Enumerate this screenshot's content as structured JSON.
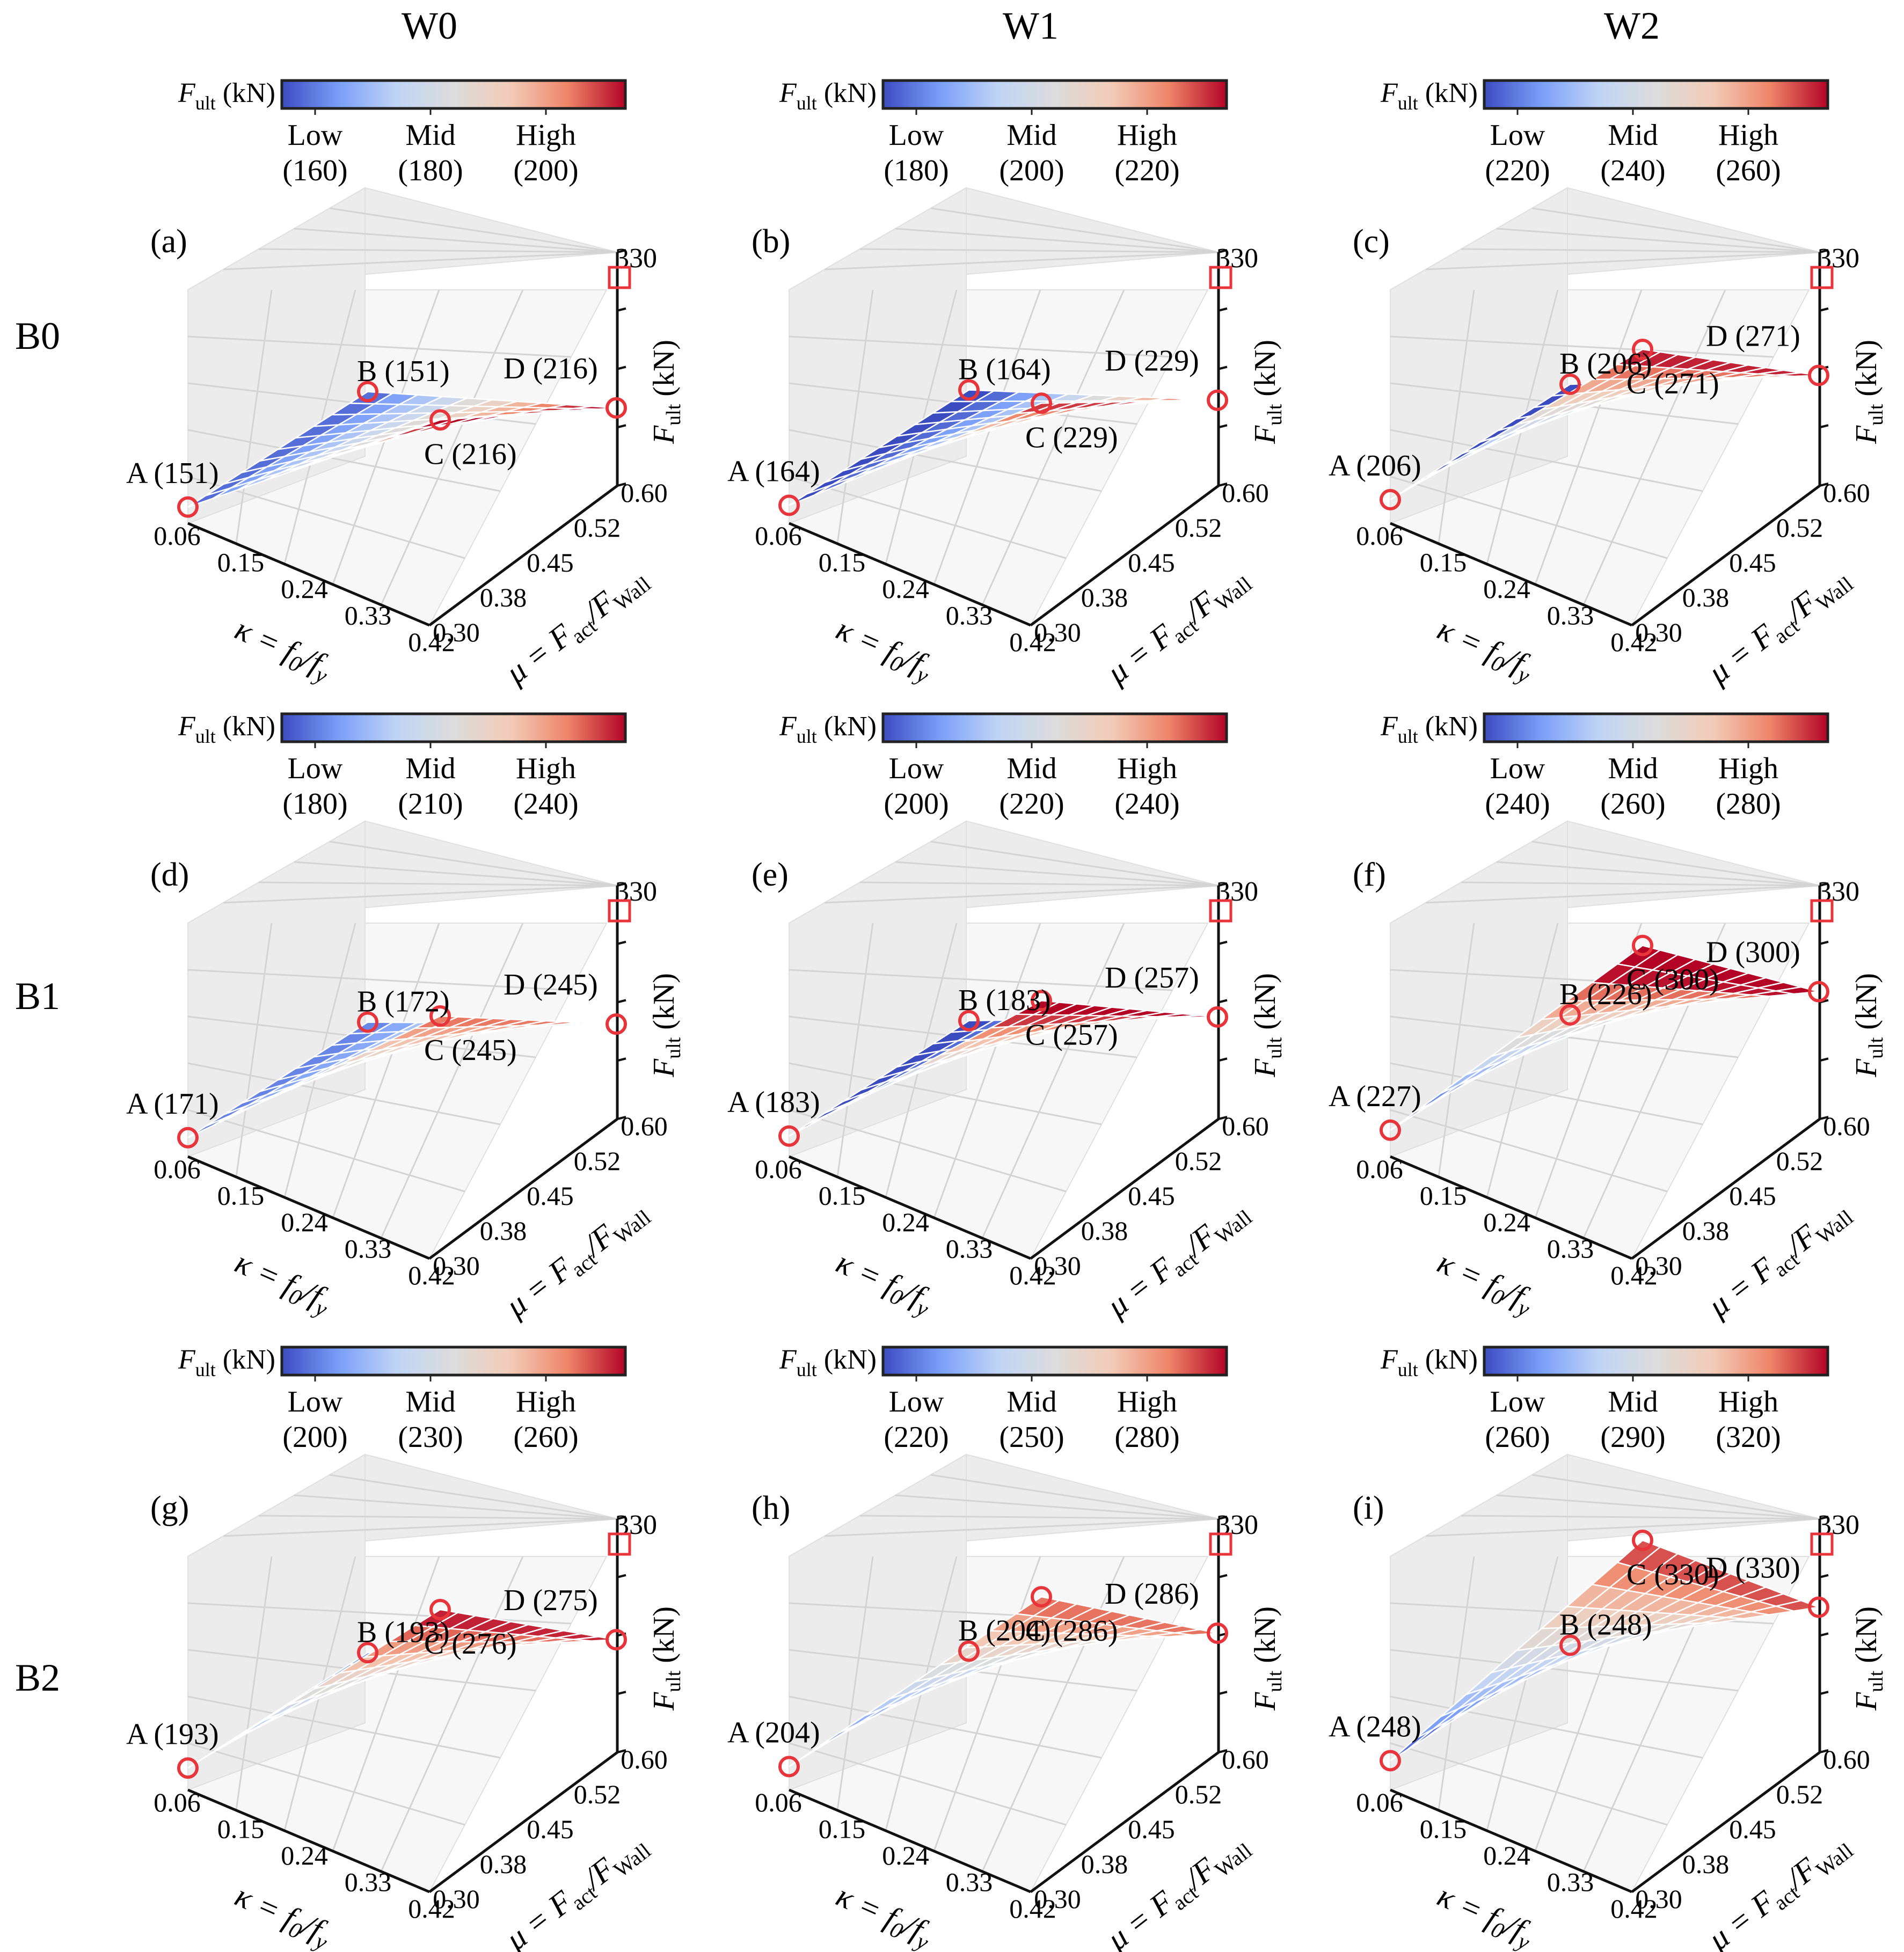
{
  "figure": {
    "columns": [
      "W0",
      "W1",
      "W2"
    ],
    "rows": [
      "B0",
      "B1",
      "B2"
    ],
    "axes": {
      "x_ticks": [
        "0.06",
        "0.15",
        "0.24",
        "0.33",
        "0.42"
      ],
      "y_ticks": [
        "0.30",
        "0.38",
        "0.45",
        "0.52",
        "0.60"
      ],
      "z_top": "330",
      "x_label_main": "κ = f",
      "x_label_sub1": "0",
      "x_label_mid": "/f",
      "x_label_sub2": "y",
      "y_label_main": "μ = F",
      "y_label_sub1": "act",
      "y_label_mid": "/F",
      "y_label_sub2": "Wall",
      "z_label_main": "F",
      "z_label_sub": "ult",
      "z_label_unit": " (kN)"
    },
    "colorbar": {
      "label_main": "F",
      "label_sub": "ult",
      "label_unit": " (kN)",
      "levels": [
        "Low",
        "Mid",
        "High"
      ],
      "colormap": [
        "#3b4cc0",
        "#7b9ff9",
        "#c0d4f5",
        "#dddcdc",
        "#f2cbb7",
        "#ee8468",
        "#b40426"
      ]
    },
    "colors": {
      "marker": "#e8353b",
      "grid": "#d4d4d4",
      "pane_light": "#f7f7f7",
      "pane_dark": "#ececec"
    }
  },
  "chart_data": [
    {
      "panel": "(a)",
      "type": "surface",
      "row": "B0",
      "column": "W0",
      "x_ticks": [
        0.06,
        0.15,
        0.24,
        0.33,
        0.42
      ],
      "y_ticks": [
        0.3,
        0.38,
        0.45,
        0.52,
        0.6
      ],
      "zlim": [
        0,
        330
      ],
      "z_max_label": "330",
      "colorbar_ticks": {
        "low": "(160)",
        "mid": "(180)",
        "high": "(200)"
      },
      "corners": {
        "A": {
          "label": "A (151)",
          "value": 151
        },
        "B": {
          "label": "B (151)",
          "value": 151
        },
        "C": {
          "label": "C (216)",
          "value": 216
        },
        "D": {
          "label": "D (216)",
          "value": 216
        }
      },
      "ylabel": "F_ult (kN)",
      "xlabel": "κ=f0/fy",
      "ylabel2": "μ=Fact/FWall"
    },
    {
      "panel": "(b)",
      "type": "surface",
      "row": "B0",
      "column": "W1",
      "x_ticks": [
        0.06,
        0.15,
        0.24,
        0.33,
        0.42
      ],
      "y_ticks": [
        0.3,
        0.38,
        0.45,
        0.52,
        0.6
      ],
      "zlim": [
        0,
        330
      ],
      "z_max_label": "330",
      "colorbar_ticks": {
        "low": "(180)",
        "mid": "(200)",
        "high": "(220)"
      },
      "corners": {
        "A": {
          "label": "A (164)",
          "value": 164
        },
        "B": {
          "label": "B (164)",
          "value": 164
        },
        "C": {
          "label": "C (229)",
          "value": 229
        },
        "D": {
          "label": "D (229)",
          "value": 229
        }
      },
      "ylabel": "F_ult (kN)",
      "xlabel": "κ=f0/fy",
      "ylabel2": "μ=Fact/FWall"
    },
    {
      "panel": "(c)",
      "type": "surface",
      "row": "B0",
      "column": "W2",
      "x_ticks": [
        0.06,
        0.15,
        0.24,
        0.33,
        0.42
      ],
      "y_ticks": [
        0.3,
        0.38,
        0.45,
        0.52,
        0.6
      ],
      "zlim": [
        0,
        330
      ],
      "z_max_label": "330",
      "colorbar_ticks": {
        "low": "(220)",
        "mid": "(240)",
        "high": "(260)"
      },
      "corners": {
        "A": {
          "label": "A (206)",
          "value": 206
        },
        "B": {
          "label": "B (206)",
          "value": 206
        },
        "C": {
          "label": "C (271)",
          "value": 271
        },
        "D": {
          "label": "D (271)",
          "value": 271
        }
      },
      "ylabel": "F_ult (kN)",
      "xlabel": "κ=f0/fy",
      "ylabel2": "μ=Fact/FWall"
    },
    {
      "panel": "(d)",
      "type": "surface",
      "row": "B1",
      "column": "W0",
      "x_ticks": [
        0.06,
        0.15,
        0.24,
        0.33,
        0.42
      ],
      "y_ticks": [
        0.3,
        0.38,
        0.45,
        0.52,
        0.6
      ],
      "zlim": [
        0,
        330
      ],
      "z_max_label": "330",
      "colorbar_ticks": {
        "low": "(180)",
        "mid": "(210)",
        "high": "(240)"
      },
      "corners": {
        "A": {
          "label": "A (171)",
          "value": 171
        },
        "B": {
          "label": "B (172)",
          "value": 172
        },
        "C": {
          "label": "C (245)",
          "value": 245
        },
        "D": {
          "label": "D (245)",
          "value": 245
        }
      },
      "ylabel": "F_ult (kN)",
      "xlabel": "κ=f0/fy",
      "ylabel2": "μ=Fact/FWall"
    },
    {
      "panel": "(e)",
      "type": "surface",
      "row": "B1",
      "column": "W1",
      "x_ticks": [
        0.06,
        0.15,
        0.24,
        0.33,
        0.42
      ],
      "y_ticks": [
        0.3,
        0.38,
        0.45,
        0.52,
        0.6
      ],
      "zlim": [
        0,
        330
      ],
      "z_max_label": "330",
      "colorbar_ticks": {
        "low": "(200)",
        "mid": "(220)",
        "high": "(240)"
      },
      "corners": {
        "A": {
          "label": "A (183)",
          "value": 183
        },
        "B": {
          "label": "B (183)",
          "value": 183
        },
        "C": {
          "label": "C (257)",
          "value": 257
        },
        "D": {
          "label": "D (257)",
          "value": 257
        }
      },
      "ylabel": "F_ult (kN)",
      "xlabel": "κ=f0/fy",
      "ylabel2": "μ=Fact/FWall"
    },
    {
      "panel": "(f)",
      "type": "surface",
      "row": "B1",
      "column": "W2",
      "x_ticks": [
        0.06,
        0.15,
        0.24,
        0.33,
        0.42
      ],
      "y_ticks": [
        0.3,
        0.38,
        0.45,
        0.52,
        0.6
      ],
      "zlim": [
        0,
        330
      ],
      "z_max_label": "330",
      "colorbar_ticks": {
        "low": "(240)",
        "mid": "(260)",
        "high": "(280)"
      },
      "corners": {
        "A": {
          "label": "A (227)",
          "value": 227
        },
        "B": {
          "label": "B (226)",
          "value": 226
        },
        "C": {
          "label": "C (300)",
          "value": 300
        },
        "D": {
          "label": "D (300)",
          "value": 300
        }
      },
      "ylabel": "F_ult (kN)",
      "xlabel": "κ=f0/fy",
      "ylabel2": "μ=Fact/FWall"
    },
    {
      "panel": "(g)",
      "type": "surface",
      "row": "B2",
      "column": "W0",
      "x_ticks": [
        0.06,
        0.15,
        0.24,
        0.33,
        0.42
      ],
      "y_ticks": [
        0.3,
        0.38,
        0.45,
        0.52,
        0.6
      ],
      "zlim": [
        0,
        330
      ],
      "z_max_label": "330",
      "colorbar_ticks": {
        "low": "(200)",
        "mid": "(230)",
        "high": "(260)"
      },
      "corners": {
        "A": {
          "label": "A (193)",
          "value": 193
        },
        "B": {
          "label": "B (193)",
          "value": 193
        },
        "C": {
          "label": "C (276)",
          "value": 276
        },
        "D": {
          "label": "D (275)",
          "value": 275
        }
      },
      "ylabel": "F_ult (kN)",
      "xlabel": "κ=f0/fy",
      "ylabel2": "μ=Fact/FWall"
    },
    {
      "panel": "(h)",
      "type": "surface",
      "row": "B2",
      "column": "W1",
      "x_ticks": [
        0.06,
        0.15,
        0.24,
        0.33,
        0.42
      ],
      "y_ticks": [
        0.3,
        0.38,
        0.45,
        0.52,
        0.6
      ],
      "zlim": [
        0,
        330
      ],
      "z_max_label": "330",
      "colorbar_ticks": {
        "low": "(220)",
        "mid": "(250)",
        "high": "(280)"
      },
      "corners": {
        "A": {
          "label": "A (204)",
          "value": 204
        },
        "B": {
          "label": "B (204)",
          "value": 204
        },
        "C": {
          "label": "C (286)",
          "value": 286
        },
        "D": {
          "label": "D (286)",
          "value": 286
        }
      },
      "ylabel": "F_ult (kN)",
      "xlabel": "κ=f0/fy",
      "ylabel2": "μ=Fact/FWall"
    },
    {
      "panel": "(i)",
      "type": "surface",
      "row": "B2",
      "column": "W2",
      "x_ticks": [
        0.06,
        0.15,
        0.24,
        0.33,
        0.42
      ],
      "y_ticks": [
        0.3,
        0.38,
        0.45,
        0.52,
        0.6
      ],
      "zlim": [
        0,
        330
      ],
      "z_max_label": "330",
      "colorbar_ticks": {
        "low": "(260)",
        "mid": "(290)",
        "high": "(320)"
      },
      "corners": {
        "A": {
          "label": "A (248)",
          "value": 248
        },
        "B": {
          "label": "B (248)",
          "value": 248
        },
        "C": {
          "label": "C (330)",
          "value": 330
        },
        "D": {
          "label": "D (330)",
          "value": 330
        }
      },
      "ylabel": "F_ult (kN)",
      "xlabel": "κ=f0/fy",
      "ylabel2": "μ=Fact/FWall"
    }
  ]
}
